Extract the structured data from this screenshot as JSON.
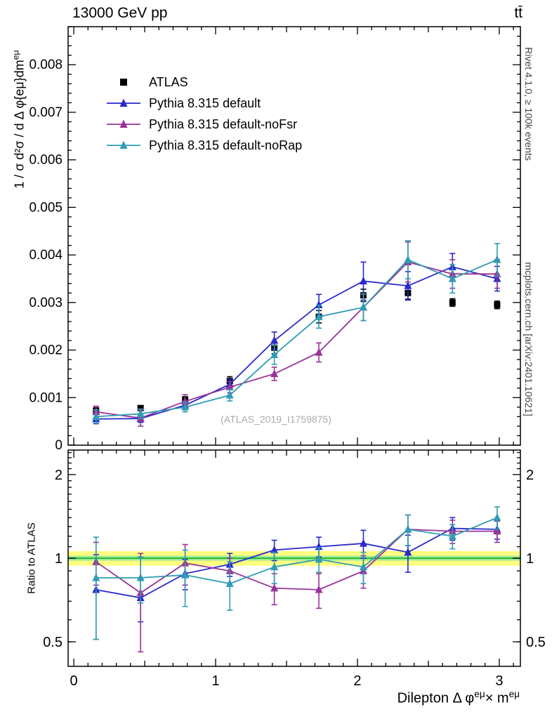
{
  "header": {
    "title_left": "13000 GeV pp",
    "title_right": "tt̄"
  },
  "side": {
    "right_top": "Rivet 4.1.0, ≥ 100k events",
    "right_bottom": "mcplots.cern.ch [arXiv:2401.10621]"
  },
  "watermark": "(ATLAS_2019_I1759875)",
  "chart_data": {
    "type": "line",
    "x_label": "Dilepton Δ φ^{eμ}× m^{eμ}",
    "y_label": "1 / σ d²σ / d Δ φ{eμ}dm^{eμ}",
    "ratio_label": "Ratio to ATLAS",
    "x": [
      0.157,
      0.471,
      0.785,
      1.1,
      1.414,
      1.728,
      2.042,
      2.356,
      2.67,
      2.985
    ],
    "xlim": [
      -0.04,
      3.149
    ],
    "ylim": [
      0,
      0.0088
    ],
    "x_major_ticks": [
      0,
      1,
      2,
      3
    ],
    "y_ticks": [
      0,
      0.001,
      0.002,
      0.003,
      0.004,
      0.005,
      0.006,
      0.007,
      0.008
    ],
    "y_major_step": 0.001,
    "y_minor_step": 0.0002,
    "ratio_scale": "log",
    "ratio_lim": [
      0.408,
      2.45
    ],
    "ratio_ticks": [
      0.5,
      1,
      2
    ],
    "ratio_minor_ticks": [
      0.5,
      0.6,
      0.7,
      0.8,
      0.9,
      1.1,
      1.2,
      1.3,
      1.4,
      1.5,
      1.6,
      1.7,
      1.8,
      1.9,
      2.1,
      2.2,
      2.3,
      2.4
    ],
    "band_outer": [
      0.94,
      1.06
    ],
    "band_inner": [
      0.98,
      1.02
    ],
    "band_outer_color": "#ffff80",
    "band_inner_color": "#9de89d",
    "band_line_color": "#2dbf2d",
    "series": [
      {
        "name": "ATLAS",
        "color": "#000000",
        "marker": "square",
        "line": false,
        "values": [
          0.00072,
          0.00078,
          0.00095,
          0.00135,
          0.00205,
          0.0027,
          0.00315,
          0.0032,
          0.003,
          0.00295
        ],
        "errors": [
          7e-05,
          5e-05,
          7e-05,
          9e-05,
          0.00013,
          0.00013,
          0.00013,
          0.00013,
          8e-05,
          8e-05
        ]
      },
      {
        "name": "Pythia 8.315 default",
        "color": "#2929cc",
        "marker": "triangle",
        "line": true,
        "values": [
          0.00055,
          0.00056,
          0.00084,
          0.00128,
          0.0022,
          0.00295,
          0.00345,
          0.00335,
          0.00375,
          0.0035
        ],
        "errors": [
          0.0001,
          8e-05,
          9e-05,
          0.00011,
          0.00018,
          0.00022,
          0.0004,
          0.0003,
          0.00028,
          0.00026
        ],
        "ratio": [
          0.77,
          0.72,
          0.88,
          0.95,
          1.07,
          1.1,
          1.13,
          1.05,
          1.28,
          1.27
        ],
        "ratio_errors": [
          0.26,
          0.13,
          0.11,
          0.09,
          0.09,
          0.09,
          0.13,
          0.16,
          0.12,
          0.1
        ]
      },
      {
        "name": "Pythia 8.315 default-noFsr",
        "color": "#993399",
        "marker": "triangle",
        "line": true,
        "values": [
          0.0007,
          0.00057,
          0.00092,
          0.00122,
          0.0015,
          0.00195,
          0.0029,
          0.00385,
          0.0036,
          0.0036
        ],
        "errors": [
          0.00012,
          0.00017,
          0.00014,
          0.00012,
          0.00014,
          0.0002,
          0.00028,
          0.00042,
          0.0003,
          0.0003
        ],
        "ratio": [
          0.97,
          0.75,
          0.96,
          0.9,
          0.78,
          0.77,
          0.9,
          1.27,
          1.25,
          1.25
        ],
        "ratio_errors": [
          0.17,
          0.29,
          0.16,
          0.1,
          0.1,
          0.11,
          0.12,
          0.16,
          0.12,
          0.11
        ]
      },
      {
        "name": "Pythia 8.315 default-noRap",
        "color": "#2f9db4",
        "marker": "triangle",
        "line": true,
        "values": [
          0.0006,
          0.00066,
          0.0008,
          0.00105,
          0.0019,
          0.0027,
          0.0029,
          0.0039,
          0.0035,
          0.0039
        ],
        "errors": [
          0.00014,
          0.0001,
          0.0001,
          0.00012,
          0.0002,
          0.00024,
          0.00028,
          0.0004,
          0.0003,
          0.00034
        ],
        "ratio": [
          0.85,
          0.85,
          0.87,
          0.81,
          0.93,
          0.99,
          0.93,
          1.27,
          1.2,
          1.4
        ],
        "ratio_errors": [
          0.34,
          0.16,
          0.2,
          0.16,
          0.12,
          0.1,
          0.12,
          0.16,
          0.12,
          0.13
        ]
      }
    ]
  }
}
